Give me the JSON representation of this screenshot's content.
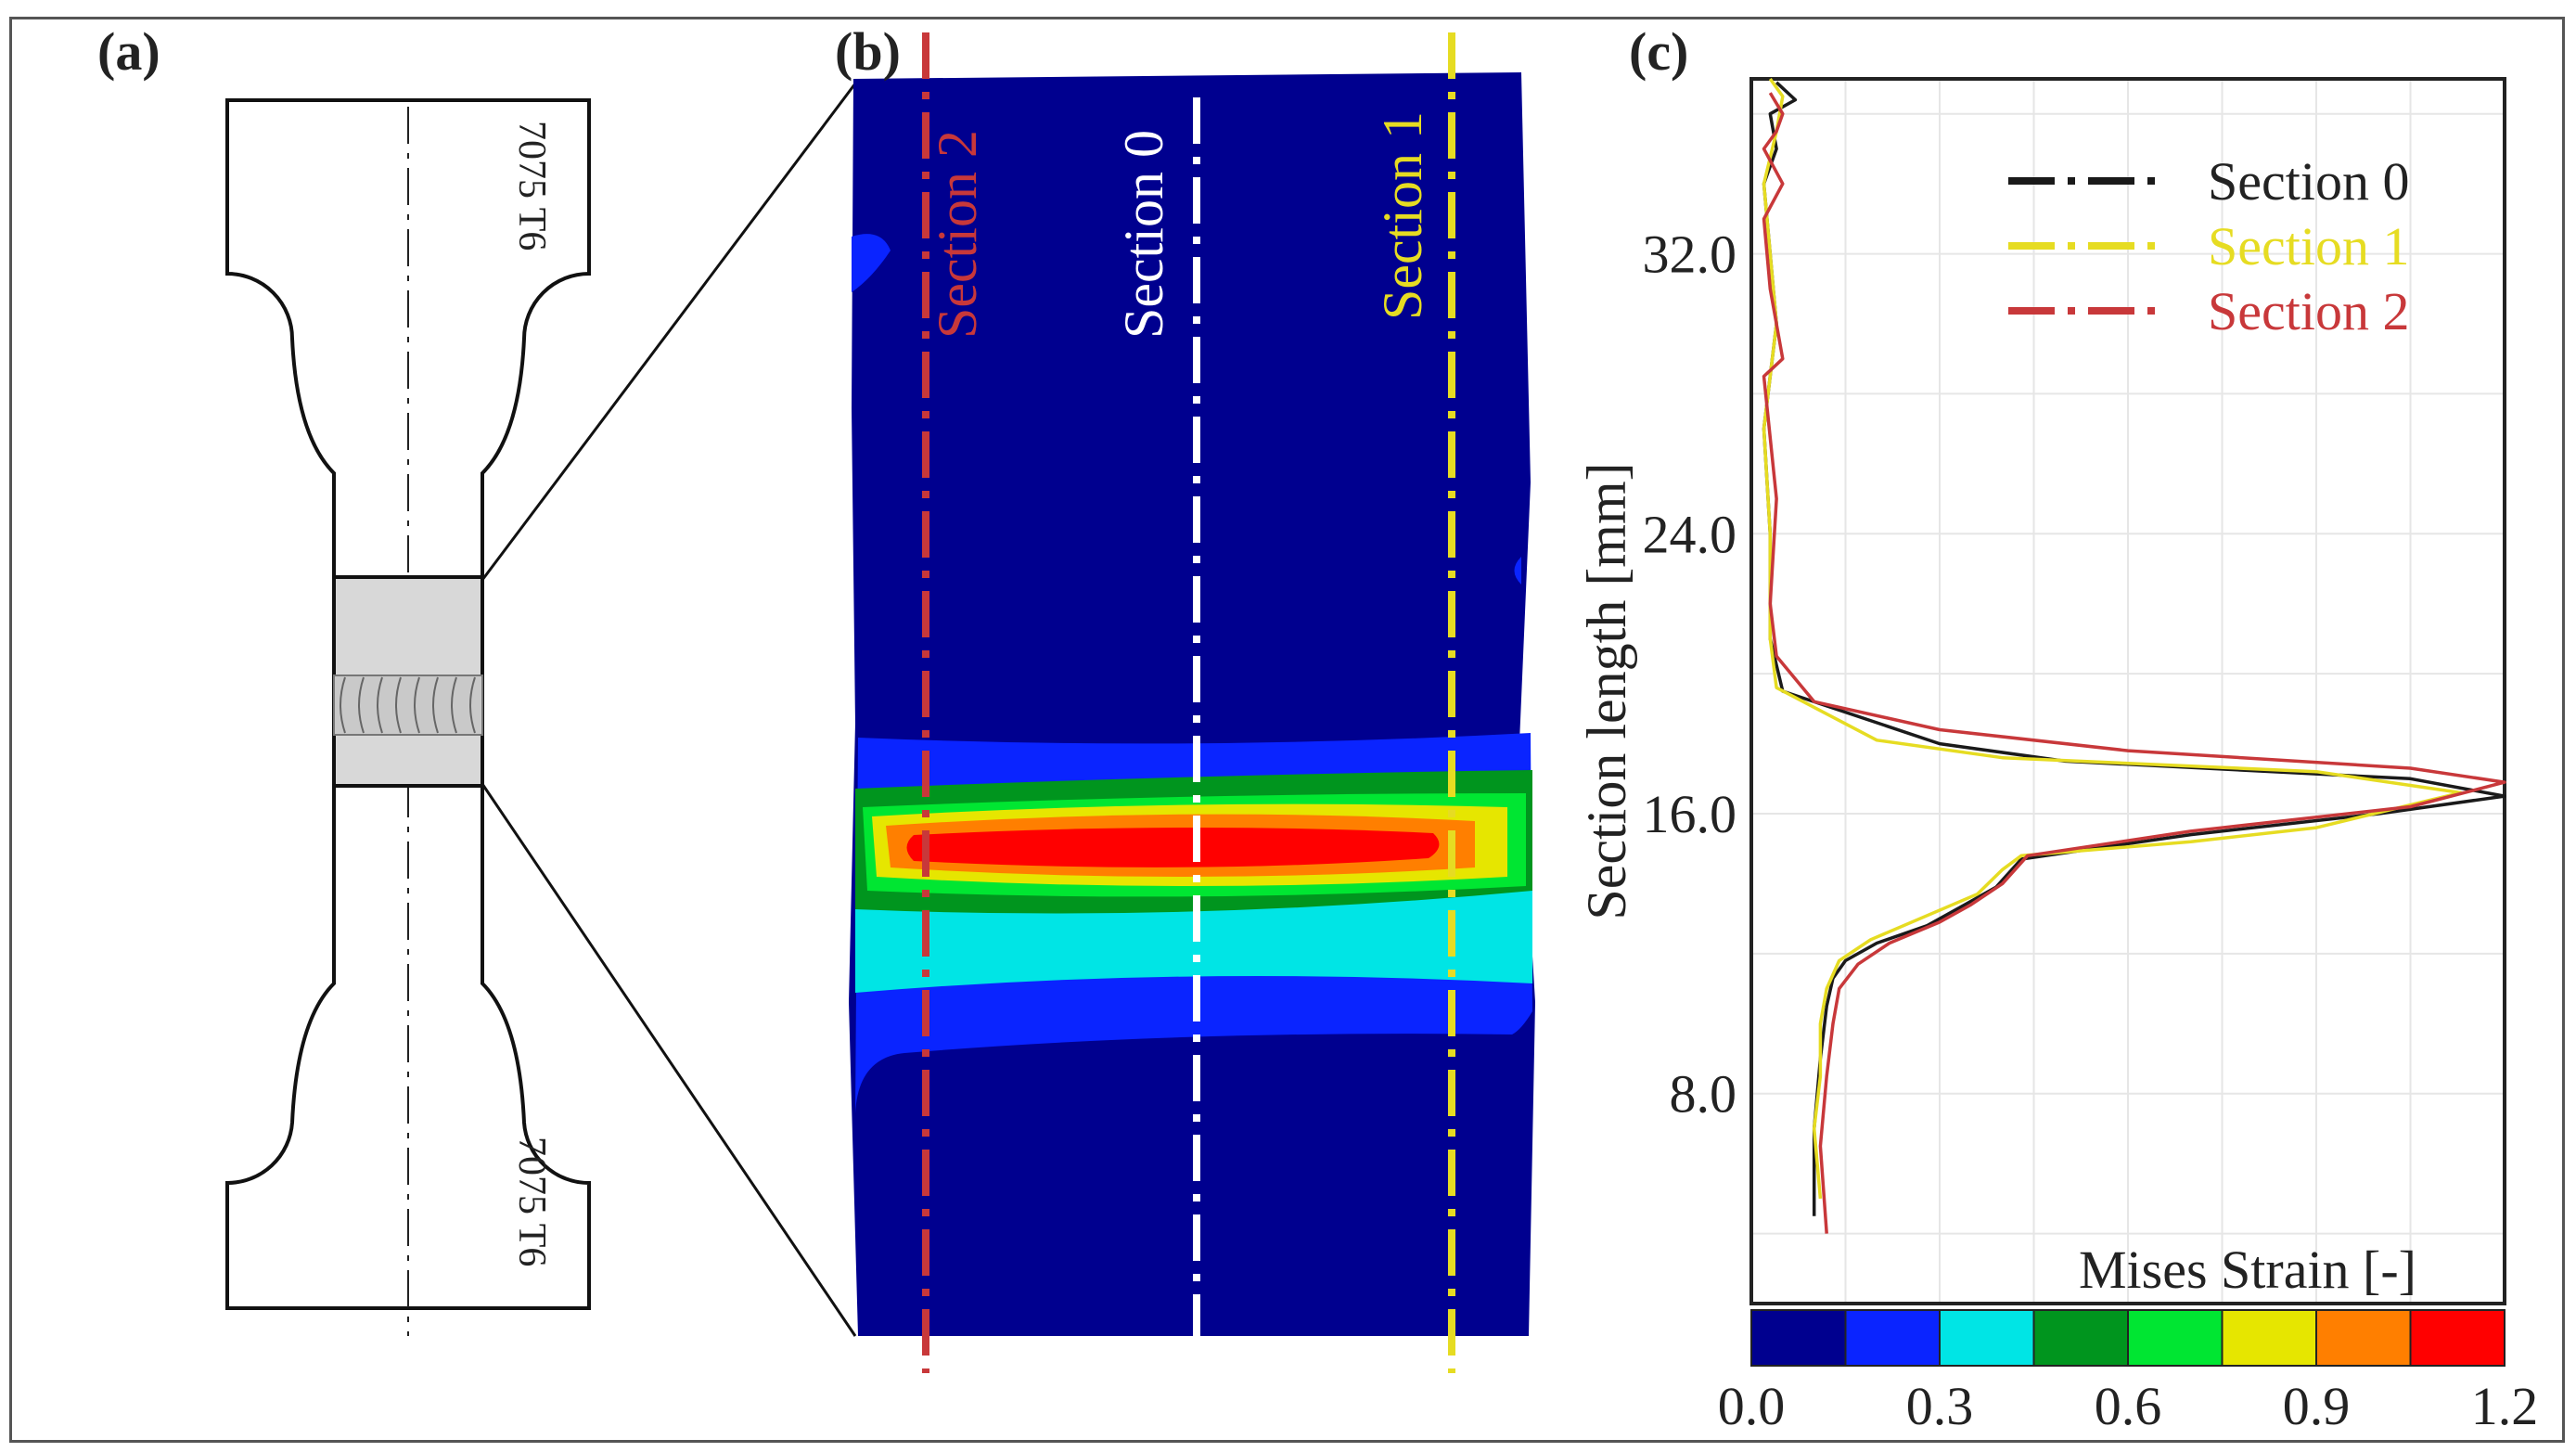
{
  "panels": {
    "a": {
      "label": "(a)",
      "material_top": "7075 T6",
      "material_bottom": "7075 T6"
    },
    "b": {
      "label": "(b)",
      "sections": [
        {
          "name": "Section 2",
          "color": "#c8383a"
        },
        {
          "name": "Section 0",
          "color": "#ffffff"
        },
        {
          "name": "Section 1",
          "color": "#e6dc22"
        }
      ]
    },
    "c": {
      "label": "(c)",
      "ylabel": "Section length [mm]",
      "colorbar_label": "Mises Strain [-]"
    }
  },
  "colormap": [
    "#00008f",
    "#0a24ff",
    "#00e5e5",
    "#00951e",
    "#00e632",
    "#e6e600",
    "#ff7f00",
    "#ff0000"
  ],
  "chart_data": {
    "type": "line",
    "xlabel": "",
    "ylabel": "Section length [mm]",
    "xlim": [
      0.0,
      1.2
    ],
    "ylim": [
      2.0,
      37.0
    ],
    "xticks": [
      0.0,
      0.3,
      0.6,
      0.9,
      1.2
    ],
    "yticks": [
      8.0,
      16.0,
      24.0,
      32.0
    ],
    "xtick_labels": [
      "0.0",
      "0.3",
      "0.6",
      "0.9",
      "1.2"
    ],
    "ytick_labels": [
      "8.0",
      "16.0",
      "24.0",
      "32.0"
    ],
    "grid": true,
    "legend": "top-right",
    "series": [
      {
        "name": "Section 0",
        "color": "#1a1a1a",
        "x": [
          0.1,
          0.1,
          0.11,
          0.12,
          0.13,
          0.15,
          0.2,
          0.28,
          0.34,
          0.39,
          0.43,
          0.7,
          1.0,
          1.2,
          1.05,
          0.5,
          0.3,
          0.05,
          0.03,
          0.03,
          0.02,
          0.04,
          0.03,
          0.02,
          0.04,
          0.03,
          0.07,
          0.04
        ],
        "y": [
          4.5,
          7.0,
          9.0,
          10.5,
          11.3,
          11.8,
          12.3,
          12.8,
          13.4,
          13.9,
          14.7,
          15.4,
          16.0,
          16.5,
          17.0,
          17.5,
          18.0,
          19.5,
          21.0,
          24.0,
          27.0,
          30.0,
          32.0,
          34.0,
          35.0,
          36.0,
          36.4,
          36.9
        ]
      },
      {
        "name": "Section 1",
        "color": "#e6dc22",
        "x": [
          0.11,
          0.1,
          0.11,
          0.11,
          0.12,
          0.14,
          0.19,
          0.36,
          0.4,
          0.43,
          0.7,
          0.9,
          1.13,
          0.9,
          0.4,
          0.2,
          0.04,
          0.03,
          0.03,
          0.02,
          0.04,
          0.03,
          0.02,
          0.04,
          0.05,
          0.03
        ],
        "y": [
          5.0,
          7.0,
          8.5,
          10.0,
          11.0,
          11.8,
          12.4,
          13.7,
          14.4,
          14.8,
          15.2,
          15.6,
          16.6,
          17.2,
          17.6,
          18.1,
          19.6,
          21.0,
          24.0,
          27.0,
          30.0,
          32.0,
          34.0,
          35.5,
          36.5,
          37.0
        ]
      },
      {
        "name": "Section 2",
        "color": "#c8383a",
        "x": [
          0.12,
          0.11,
          0.12,
          0.13,
          0.14,
          0.17,
          0.22,
          0.3,
          0.35,
          0.4,
          0.44,
          0.7,
          1.05,
          1.2,
          1.05,
          0.6,
          0.3,
          0.1,
          0.04,
          0.03,
          0.04,
          0.02,
          0.05,
          0.03,
          0.02,
          0.05,
          0.02,
          0.04,
          0.05,
          0.03
        ],
        "y": [
          4.0,
          6.5,
          8.5,
          10.0,
          11.0,
          11.7,
          12.3,
          12.9,
          13.4,
          14.0,
          14.8,
          15.5,
          16.2,
          16.9,
          17.3,
          17.8,
          18.4,
          19.2,
          20.5,
          22.0,
          25.0,
          28.5,
          29.0,
          31.0,
          33.0,
          34.0,
          35.0,
          35.5,
          36.0,
          36.6
        ]
      }
    ]
  }
}
